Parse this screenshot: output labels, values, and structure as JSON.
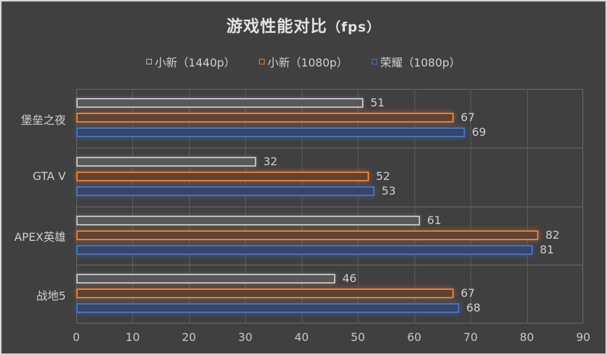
{
  "title": "游戏性能对比",
  "title_unit": "（fps）",
  "legend": [
    {
      "label": "小新（1440p）",
      "color": "#bfbfbf"
    },
    {
      "label": "小新（1080p）",
      "color": "#ed7d31"
    },
    {
      "label": "荣耀（1080p）",
      "color": "#4472c4"
    }
  ],
  "categories": [
    "堡垒之夜",
    "GTA V",
    "APEX英雄",
    "战地5"
  ],
  "x_ticks": [
    "0",
    "10",
    "20",
    "30",
    "40",
    "50",
    "60",
    "70",
    "80",
    "90"
  ],
  "chart_data": {
    "type": "bar",
    "orientation": "horizontal",
    "title": "游戏性能对比（fps）",
    "categories": [
      "堡垒之夜",
      "GTA V",
      "APEX英雄",
      "战地5"
    ],
    "series": [
      {
        "name": "小新（1440p）",
        "color": "#bfbfbf",
        "values": [
          51,
          32,
          61,
          46
        ]
      },
      {
        "name": "小新（1080p）",
        "color": "#ed7d31",
        "values": [
          67,
          52,
          82,
          67
        ]
      },
      {
        "name": "荣耀（1080p）",
        "color": "#4472c4",
        "values": [
          69,
          53,
          81,
          68
        ]
      }
    ],
    "xlabel": "",
    "ylabel": "",
    "xlim": [
      0,
      90
    ],
    "x_tick_step": 10,
    "grid": true,
    "legend_position": "top",
    "data_labels": true
  }
}
